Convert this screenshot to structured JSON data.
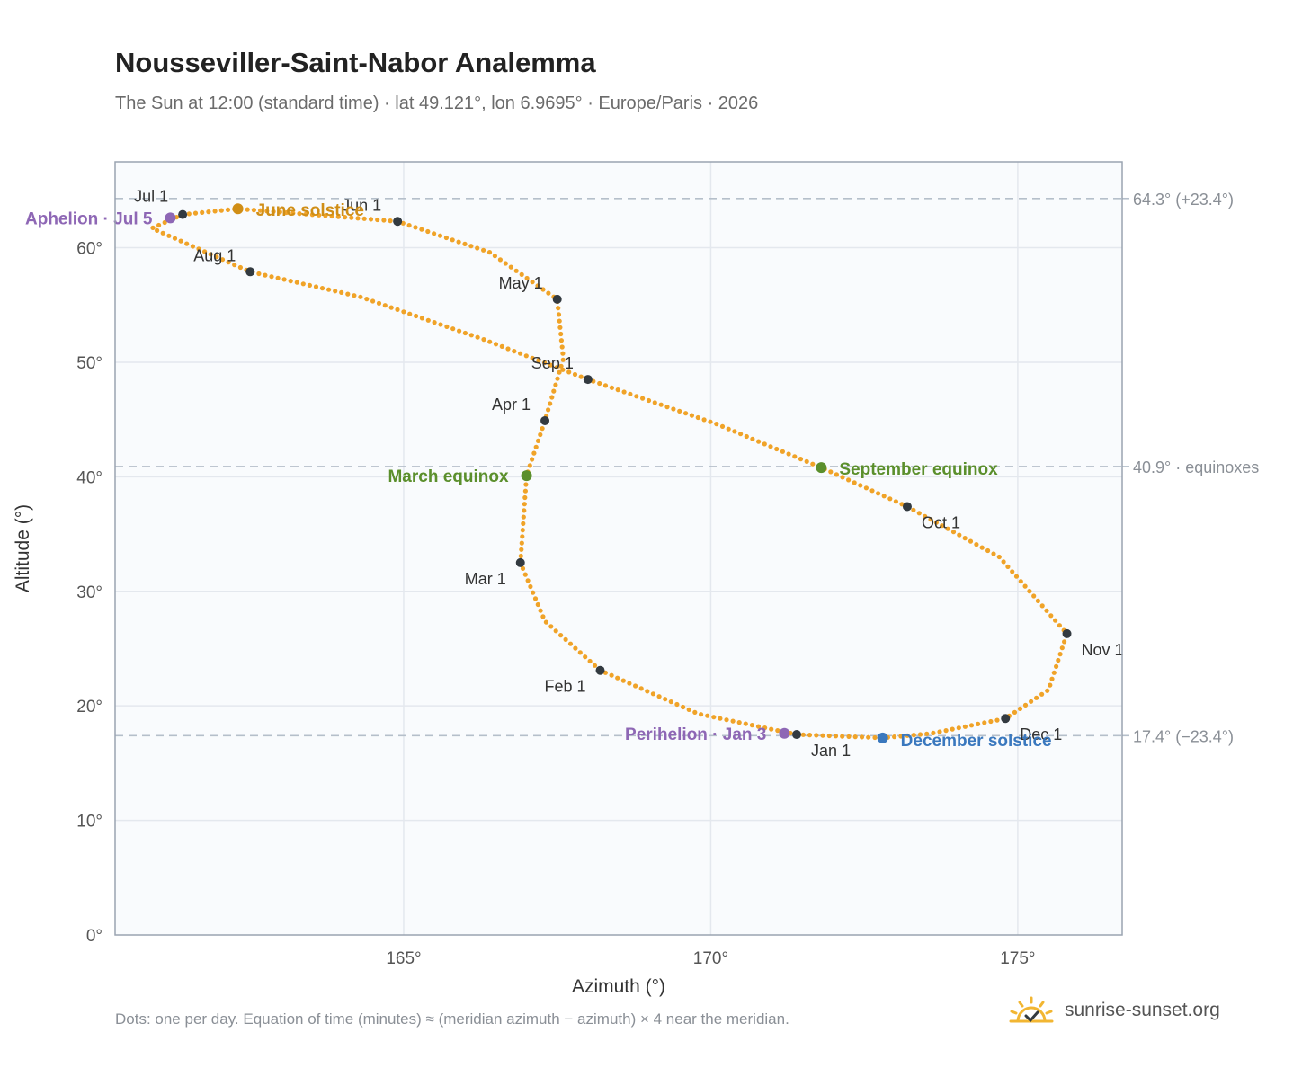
{
  "header": {
    "title": "Nousseviller-Saint-Nabor Analemma",
    "subtitle": "The Sun at 12:00 (standard time) · lat 49.121°, lon 6.9695° · Europe/Paris · 2026"
  },
  "footer": {
    "note": "Dots: one per day. Equation of time (minutes) ≈ (meridian azimuth − azimuth) × 4 near the meridian.",
    "brand": "sunrise-sunset.org",
    "brand_icon": "sun-logo-icon"
  },
  "colors": {
    "path": "#f0a328",
    "month_dot": "#333a40",
    "solstice_june": "#d08e16",
    "solstice_december": "#3a78be",
    "equinox": "#5b8f2c",
    "aphelion_perihelion": "#8e67b5",
    "grid": "#e4e8ee",
    "plot_bg": "#f9fbfd",
    "ref_line": "#b5bfca"
  },
  "chart_data": {
    "type": "scatter",
    "xlabel": "Azimuth (°)",
    "ylabel": "Altitude (°)",
    "xlim": [
      160.3,
      176.7
    ],
    "ylim": [
      0,
      67.5
    ],
    "x_ticks": [
      165,
      170,
      175
    ],
    "x_tick_labels": [
      "165°",
      "170°",
      "175°"
    ],
    "y_ticks": [
      0,
      10,
      20,
      30,
      40,
      50,
      60
    ],
    "y_tick_labels": [
      "0°",
      "10°",
      "20°",
      "30°",
      "40°",
      "50°",
      "60°"
    ],
    "grid": true,
    "reference_lines": [
      {
        "y": 64.3,
        "label": "64.3° (+23.4°)"
      },
      {
        "y": 40.9,
        "label": "40.9° · equinoxes"
      },
      {
        "y": 17.4,
        "label": "17.4° (−23.4°)"
      }
    ],
    "month_points": [
      {
        "label": "Jan 1",
        "az": 171.4,
        "alt": 17.5
      },
      {
        "label": "Feb 1",
        "az": 168.2,
        "alt": 23.1
      },
      {
        "label": "Mar 1",
        "az": 166.9,
        "alt": 32.5
      },
      {
        "label": "Apr 1",
        "az": 167.3,
        "alt": 44.9
      },
      {
        "label": "May 1",
        "az": 167.5,
        "alt": 55.5
      },
      {
        "label": "Jun 1",
        "az": 164.9,
        "alt": 62.3
      },
      {
        "label": "Jul 1",
        "az": 161.4,
        "alt": 62.9
      },
      {
        "label": "Aug 1",
        "az": 162.5,
        "alt": 57.9
      },
      {
        "label": "Sep 1",
        "az": 168.0,
        "alt": 48.5
      },
      {
        "label": "Oct 1",
        "az": 173.2,
        "alt": 37.4
      },
      {
        "label": "Nov 1",
        "az": 175.8,
        "alt": 26.3
      },
      {
        "label": "Dec 1",
        "az": 174.8,
        "alt": 18.9
      }
    ],
    "events": [
      {
        "label": "Perihelion · Jan 3",
        "az": 171.2,
        "alt": 17.6,
        "kind": "perihelion"
      },
      {
        "label": "March equinox",
        "az": 167.0,
        "alt": 40.1,
        "kind": "equinox"
      },
      {
        "label": "June solstice",
        "az": 162.3,
        "alt": 63.4,
        "kind": "solstice_june"
      },
      {
        "label": "Aphelion · Jul 5",
        "az": 161.2,
        "alt": 62.6,
        "kind": "aphelion"
      },
      {
        "label": "September equinox",
        "az": 171.8,
        "alt": 40.8,
        "kind": "equinox"
      },
      {
        "label": "December solstice",
        "az": 172.8,
        "alt": 17.2,
        "kind": "solstice_december"
      }
    ],
    "analemma_path": [
      [
        171.4,
        17.5
      ],
      [
        169.8,
        19.3
      ],
      [
        168.2,
        23.1
      ],
      [
        167.3,
        27.4
      ],
      [
        166.9,
        32.5
      ],
      [
        167.0,
        40.1
      ],
      [
        167.3,
        44.9
      ],
      [
        167.6,
        50.3
      ],
      [
        167.5,
        55.5
      ],
      [
        166.4,
        59.6
      ],
      [
        164.9,
        62.3
      ],
      [
        162.3,
        63.4
      ],
      [
        161.4,
        62.9
      ],
      [
        160.9,
        61.7
      ],
      [
        162.5,
        57.9
      ],
      [
        164.3,
        55.7
      ],
      [
        166.3,
        52.0
      ],
      [
        168.0,
        48.5
      ],
      [
        170.1,
        44.6
      ],
      [
        171.8,
        40.8
      ],
      [
        173.2,
        37.4
      ],
      [
        174.7,
        33.0
      ],
      [
        175.8,
        26.3
      ],
      [
        175.5,
        21.4
      ],
      [
        174.8,
        18.9
      ],
      [
        173.6,
        17.6
      ],
      [
        172.8,
        17.2
      ],
      [
        171.4,
        17.5
      ]
    ]
  }
}
